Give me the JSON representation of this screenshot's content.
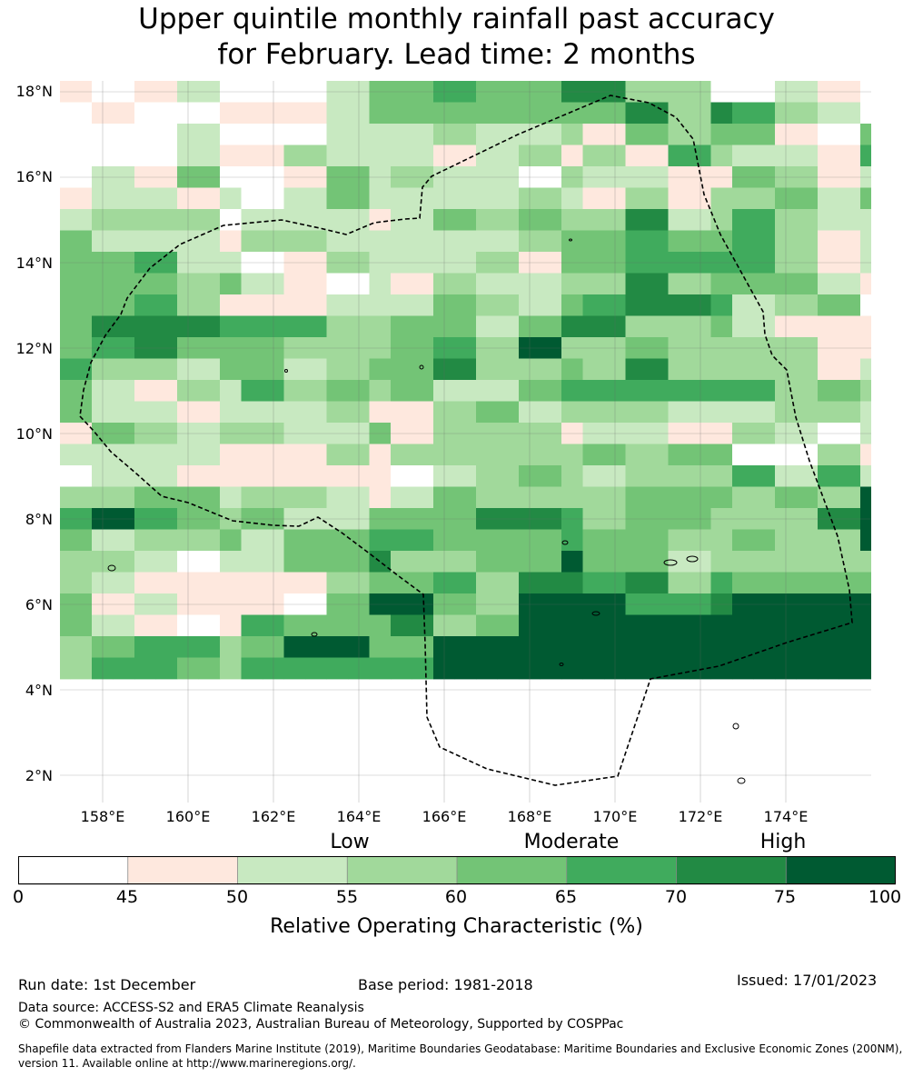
{
  "title_line1": "Upper quintile monthly rainfall past accuracy",
  "title_line2": "for February. Lead time: 2 months",
  "map": {
    "lon_range": [
      157,
      176
    ],
    "lat_range": [
      1.4,
      18.4
    ],
    "lat_ticks": [
      "18°N",
      "16°N",
      "14°N",
      "12°N",
      "10°N",
      "8°N",
      "6°N",
      "4°N",
      "2°N"
    ],
    "lon_ticks": [
      "158°E",
      "160°E",
      "162°E",
      "164°E",
      "166°E",
      "168°E",
      "170°E",
      "172°E",
      "174°E"
    ],
    "grid_rows_north_to_south": [
      "1012000244544663300210",
      "0100111244444446365320",
      "0002000222322314344104",
      "0002113222123131532215",
      "0214001423220322114312",
      "1221202422223213133424",
      "2333022212434336235322",
      "4222133222223445445312",
      "4452201322231445555312",
      "4443421021322336344421",
      "4453111222432456652340",
      "4666555334424663342111",
      "4564443334537334333311",
      "5332442344633436333312",
      "4213253434224555555343",
      "4221222311342333222332",
      "1432332241333122113202",
      "2222111313333343440031",
      "0221111110234323335252",
      "3344233212433334443437",
      "5754342244466534433367",
      "4233424455444544334337",
      "3320224463344744233333",
      "3211111344536656354444",
      "4121110477437775567777",
      "4210154446347777777777",
      "3455347744777777777777",
      "3554355555777777777777"
    ]
  },
  "colorbar": {
    "category_labels": [
      "Low",
      "Moderate",
      "High"
    ],
    "tick_labels": [
      "0",
      "45",
      "50",
      "55",
      "60",
      "65",
      "70",
      "75",
      "100"
    ],
    "colors": [
      "#ffffff",
      "#fee8de",
      "#c8e9c1",
      "#a1d99b",
      "#73c476",
      "#40ab5d",
      "#228a44",
      "#005a32"
    ],
    "title": "Relative Operating Characteristic (%)"
  },
  "footer": {
    "run_date": "Run date: 1st December",
    "base_period": "Base period: 1981-2018",
    "issued": "Issued: 17/01/2023",
    "data_source": "Data source: ACCESS-S2 and ERA5 Climate Reanalysis",
    "copyright": "© Commonwealth of Australia 2023, Australian Bureau of Meteorology, Supported by COSPPac",
    "shapefile_line1": "Shapefile data extracted from Flanders Marine Institute (2019), Maritime Boundaries Geodatabase: Maritime Boundaries and Exclusive Economic Zones (200NM),",
    "shapefile_line2": "version 11. Available online at http://www.marineregions.org/."
  }
}
